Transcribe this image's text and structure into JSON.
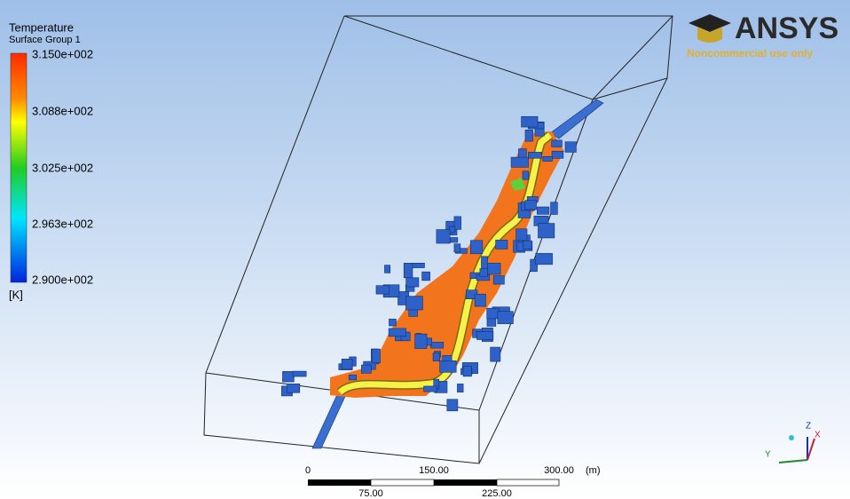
{
  "legend": {
    "title": "Temperature",
    "subtitle": "Surface Group 1",
    "labels": [
      "3.150e+002",
      "3.088e+002",
      "3.025e+002",
      "2.963e+002",
      "2.900e+002"
    ],
    "unit": "[K]"
  },
  "logo": {
    "name": "ANSYS",
    "note": "Noncommercial use only"
  },
  "scale": {
    "top_labels": [
      "0",
      "150.00",
      "300.00"
    ],
    "unit": "(m)",
    "bottom_labels": [
      "75.00",
      "225.00"
    ]
  },
  "axes": {
    "z": "Z",
    "x": "X",
    "y": "Y"
  }
}
